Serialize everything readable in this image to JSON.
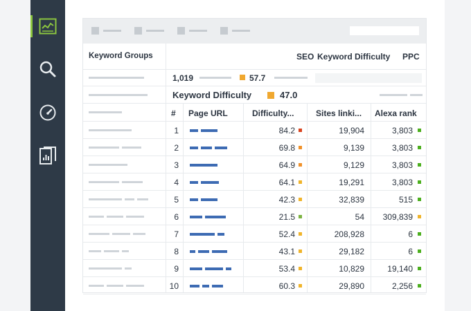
{
  "sidebar": {
    "items": [
      {
        "icon": "chart-icon",
        "active": true
      },
      {
        "icon": "search-icon",
        "active": false
      },
      {
        "icon": "gauge-icon",
        "active": false
      },
      {
        "icon": "report-icon",
        "active": false
      }
    ]
  },
  "header": {
    "keyword_groups": "Keyword Groups",
    "tabs": [
      "SEO",
      "Keyword Difficulty",
      "PPC"
    ]
  },
  "summary": {
    "count": "1,019",
    "score": "57.7"
  },
  "kd": {
    "label": "Keyword Difficulty",
    "value": "47.0"
  },
  "table": {
    "columns": [
      "#",
      "Page URL",
      "Difficulty...",
      "Sites linki...",
      "Alexa rank"
    ],
    "rows": [
      {
        "n": "1",
        "difficulty": "84.2",
        "dcolor": "#d9441f",
        "sites": "19,904",
        "alexa": "3,803",
        "acolor": "#4caf1e"
      },
      {
        "n": "2",
        "difficulty": "69.8",
        "dcolor": "#f0912a",
        "sites": "9,139",
        "alexa": "3,803",
        "acolor": "#4caf1e"
      },
      {
        "n": "3",
        "difficulty": "64.9",
        "dcolor": "#f0912a",
        "sites": "9,129",
        "alexa": "3,803",
        "acolor": "#4caf1e"
      },
      {
        "n": "4",
        "difficulty": "64.1",
        "dcolor": "#f0b42a",
        "sites": "19,291",
        "alexa": "3,803",
        "acolor": "#4caf1e"
      },
      {
        "n": "5",
        "difficulty": "42.3",
        "dcolor": "#f0b42a",
        "sites": "32,839",
        "alexa": "515",
        "acolor": "#4caf1e"
      },
      {
        "n": "6",
        "difficulty": "21.5",
        "dcolor": "#7cb342",
        "sites": "54",
        "alexa": "309,839",
        "acolor": "#f0b42a"
      },
      {
        "n": "7",
        "difficulty": "52.4",
        "dcolor": "#f0b42a",
        "sites": "208,928",
        "alexa": "6",
        "acolor": "#4caf1e"
      },
      {
        "n": "8",
        "difficulty": "43.1",
        "dcolor": "#f0b42a",
        "sites": "29,182",
        "alexa": "6",
        "acolor": "#4caf1e"
      },
      {
        "n": "9",
        "difficulty": "53.4",
        "dcolor": "#f0b42a",
        "sites": "10,829",
        "alexa": "19,140",
        "acolor": "#4caf1e"
      },
      {
        "n": "10",
        "difficulty": "60.3",
        "dcolor": "#f0b42a",
        "sites": "29,890",
        "alexa": "2,256",
        "acolor": "#4caf1e"
      }
    ]
  },
  "colors": {
    "accent": "#7cb342",
    "sidebar": "#2e3a47",
    "bar": "#3d6bb3",
    "kd_square": "#f0a830"
  }
}
